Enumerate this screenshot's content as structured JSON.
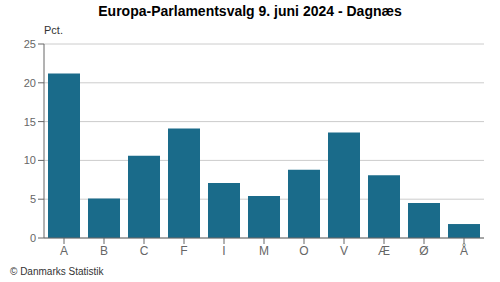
{
  "chart_data": {
    "type": "bar",
    "title": "Europa-Parlamentsvalg 9. juni 2024 - Dagnæs",
    "ylabel": "Pct.",
    "annotations": [
      "© Danmarks Statistik"
    ],
    "categories": [
      "A",
      "B",
      "C",
      "F",
      "I",
      "M",
      "O",
      "V",
      "Æ",
      "Ø",
      "Å"
    ],
    "values": [
      21.2,
      5.1,
      10.6,
      14.1,
      7.1,
      5.4,
      8.8,
      13.6,
      8.1,
      4.5,
      1.8
    ],
    "color": "#1a6b8a",
    "ylim": [
      0,
      25
    ],
    "yticks": [
      0,
      5,
      10,
      15,
      20,
      25
    ],
    "grid": true
  }
}
